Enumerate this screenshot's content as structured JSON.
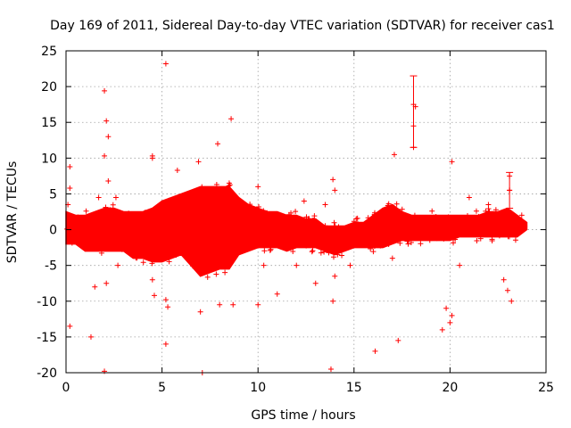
{
  "chart_data": {
    "type": "scatter",
    "title": "Day 169 of 2011, Sidereal Day-to-day VTEC variation (SDTVAR) for receiver cas1",
    "xlabel": "GPS time / hours",
    "ylabel": "SDTVAR / TECUs",
    "xlim": [
      0,
      25
    ],
    "ylim": [
      -20,
      25
    ],
    "x_ticks": [
      0,
      5,
      10,
      15,
      20,
      25
    ],
    "y_ticks": [
      -20,
      -15,
      -10,
      -5,
      0,
      5,
      10,
      15,
      20,
      25
    ],
    "grid": true,
    "marker": "+",
    "color": "#ff0000",
    "band": {
      "x": [
        0,
        0.5,
        1,
        1.5,
        2,
        2.5,
        3,
        3.5,
        4,
        4.5,
        5,
        5.5,
        6,
        6.5,
        7,
        7.5,
        8,
        8.5,
        9,
        9.5,
        10,
        10.5,
        11,
        11.5,
        12,
        12.5,
        13,
        13.5,
        14,
        14.5,
        15,
        15.5,
        16,
        16.5,
        17,
        17.5,
        18,
        18.5,
        19,
        19.5,
        20,
        20.5,
        21,
        21.5,
        22,
        22.5,
        23,
        23.5,
        24
      ],
      "upper": [
        2.5,
        2,
        2,
        2.5,
        3,
        3,
        2.5,
        2.5,
        2.5,
        3,
        4,
        4.5,
        5,
        5.5,
        6,
        6,
        6,
        6,
        4.5,
        3.5,
        3,
        2.5,
        2.5,
        2,
        2,
        1.5,
        1.5,
        0.5,
        0.5,
        0.5,
        1,
        1,
        2,
        3,
        3.5,
        2.5,
        2,
        2,
        2,
        2,
        2,
        2,
        2,
        2,
        2.5,
        2.5,
        3,
        2,
        1
      ],
      "lower": [
        -2,
        -2,
        -3,
        -3,
        -3,
        -3,
        -3,
        -4,
        -4,
        -4.5,
        -4.5,
        -4,
        -3.5,
        -5,
        -6.5,
        -6,
        -5.5,
        -5.5,
        -3.5,
        -3,
        -2.5,
        -2.5,
        -2.5,
        -3,
        -2.5,
        -2.5,
        -2.5,
        -3,
        -3.5,
        -3,
        -2.5,
        -2.5,
        -2.5,
        -2.5,
        -2,
        -1.5,
        -1.5,
        -1.5,
        -1.5,
        -1.5,
        -1.5,
        -1,
        -1,
        -1,
        -1,
        -1,
        -1,
        -1,
        0
      ]
    },
    "outliers": [
      {
        "x": 0.1,
        "y": 3.5
      },
      {
        "x": 0.2,
        "y": 8.8
      },
      {
        "x": 0.2,
        "y": 5.8
      },
      {
        "x": 0.2,
        "y": -13.5
      },
      {
        "x": 1.3,
        "y": -15
      },
      {
        "x": 1.5,
        "y": -8
      },
      {
        "x": 1.7,
        "y": 4.5
      },
      {
        "x": 2.0,
        "y": 19.4
      },
      {
        "x": 2.1,
        "y": 15.2
      },
      {
        "x": 2.2,
        "y": 13
      },
      {
        "x": 2.0,
        "y": 10.3
      },
      {
        "x": 2.2,
        "y": 6.8
      },
      {
        "x": 2.1,
        "y": -7.5
      },
      {
        "x": 2.0,
        "y": -19.8
      },
      {
        "x": 2.6,
        "y": 4.5
      },
      {
        "x": 2.7,
        "y": -5
      },
      {
        "x": 4.5,
        "y": 10.3
      },
      {
        "x": 4.5,
        "y": 10
      },
      {
        "x": 4.5,
        "y": -7
      },
      {
        "x": 4.6,
        "y": -9.2
      },
      {
        "x": 5.2,
        "y": 23.2
      },
      {
        "x": 5.2,
        "y": -9.8
      },
      {
        "x": 5.3,
        "y": -10.8
      },
      {
        "x": 5.2,
        "y": -16
      },
      {
        "x": 5.8,
        "y": 8.3
      },
      {
        "x": 6.9,
        "y": 9.5
      },
      {
        "x": 7.0,
        "y": -11.5
      },
      {
        "x": 7.1,
        "y": -20
      },
      {
        "x": 7.9,
        "y": 12
      },
      {
        "x": 8.0,
        "y": -10.5
      },
      {
        "x": 8.6,
        "y": 15.5
      },
      {
        "x": 8.5,
        "y": 6.5
      },
      {
        "x": 8.7,
        "y": -10.5
      },
      {
        "x": 10.0,
        "y": 6
      },
      {
        "x": 10.0,
        "y": -10.5
      },
      {
        "x": 10.3,
        "y": -5
      },
      {
        "x": 11.0,
        "y": -9
      },
      {
        "x": 12.0,
        "y": -5
      },
      {
        "x": 12.4,
        "y": 4
      },
      {
        "x": 13.0,
        "y": -7.5
      },
      {
        "x": 13.5,
        "y": 3.5
      },
      {
        "x": 13.8,
        "y": -19.5
      },
      {
        "x": 13.9,
        "y": 7
      },
      {
        "x": 14.0,
        "y": 5.5
      },
      {
        "x": 13.9,
        "y": -10
      },
      {
        "x": 14.0,
        "y": -6.5
      },
      {
        "x": 14.8,
        "y": -5
      },
      {
        "x": 16.1,
        "y": -17
      },
      {
        "x": 17.1,
        "y": 10.5
      },
      {
        "x": 17.3,
        "y": -15.5
      },
      {
        "x": 17.0,
        "y": -4
      },
      {
        "x": 18.1,
        "y": 14.5
      },
      {
        "x": 18.1,
        "y": 11.5
      },
      {
        "x": 18.2,
        "y": 17.2
      },
      {
        "x": 19.6,
        "y": -14
      },
      {
        "x": 19.8,
        "y": -11
      },
      {
        "x": 20.1,
        "y": 9.5
      },
      {
        "x": 20.0,
        "y": -13
      },
      {
        "x": 20.1,
        "y": -12
      },
      {
        "x": 20.5,
        "y": -5
      },
      {
        "x": 21.0,
        "y": 4.5
      },
      {
        "x": 22.0,
        "y": 3.5
      },
      {
        "x": 22.8,
        "y": -7
      },
      {
        "x": 23.1,
        "y": 7.5
      },
      {
        "x": 23.1,
        "y": 5.5
      },
      {
        "x": 23.0,
        "y": -8.5
      },
      {
        "x": 23.2,
        "y": -10
      }
    ],
    "errorbars": [
      {
        "x": 18.1,
        "y": 17.5,
        "ymin": 11.5,
        "ymax": 21.5
      },
      {
        "x": 23.1,
        "y": 5.5,
        "ymin": 3,
        "ymax": 8
      }
    ]
  }
}
